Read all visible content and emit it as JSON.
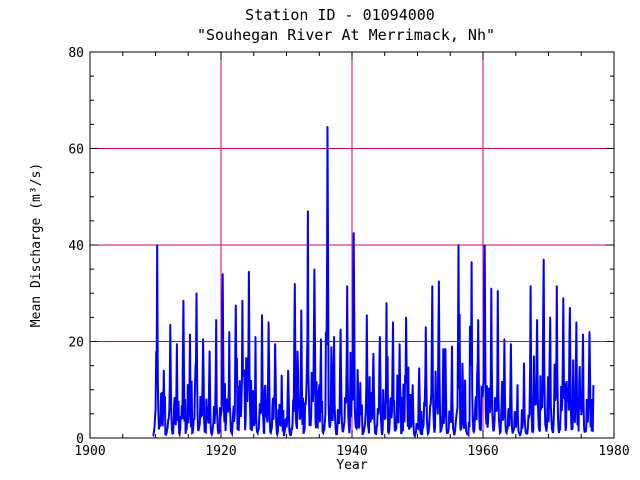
{
  "chart_data": {
    "type": "line",
    "title": "Station ID - 01094000",
    "subtitle": "\"Souhegan River At Merrimack, Nh\"",
    "xlabel": "Year",
    "ylabel": "Mean Discharge (m³/s)",
    "xlim": [
      1900,
      1980
    ],
    "ylim": [
      0,
      80
    ],
    "xticks": [
      1900,
      1920,
      1940,
      1960,
      1980
    ],
    "yticks": [
      0,
      20,
      40,
      60,
      80
    ],
    "grid": true,
    "colors": {
      "series": "#0000ff",
      "grid": "#cc0077",
      "axes": "#000000"
    },
    "series": [
      {
        "peaks": [
          [
            1910.0,
            40.0
          ],
          [
            1911.0,
            14.0
          ],
          [
            1912.0,
            23.5
          ],
          [
            1913.0,
            19.5
          ],
          [
            1914.0,
            28.5
          ],
          [
            1915.0,
            21.5
          ],
          [
            1916.0,
            30.0
          ],
          [
            1917.0,
            20.5
          ],
          [
            1918.0,
            18.0
          ],
          [
            1919.0,
            24.5
          ],
          [
            1920.0,
            34.0
          ],
          [
            1921.0,
            22.0
          ],
          [
            1922.0,
            27.5
          ],
          [
            1923.0,
            28.5
          ],
          [
            1924.0,
            34.5
          ],
          [
            1925.0,
            21.0
          ],
          [
            1926.0,
            25.5
          ],
          [
            1927.0,
            24.0
          ],
          [
            1928.0,
            19.5
          ],
          [
            1929.0,
            13.0
          ],
          [
            1930.0,
            14.0
          ],
          [
            1931.0,
            32.0
          ],
          [
            1932.0,
            26.5
          ],
          [
            1933.0,
            47.0
          ],
          [
            1934.0,
            35.0
          ],
          [
            1935.0,
            20.5
          ],
          [
            1936.0,
            64.5
          ],
          [
            1937.0,
            21.0
          ],
          [
            1938.0,
            22.5
          ],
          [
            1939.0,
            31.5
          ],
          [
            1940.0,
            42.5
          ],
          [
            1941.0,
            11.5
          ],
          [
            1942.0,
            25.5
          ],
          [
            1943.0,
            17.5
          ],
          [
            1944.0,
            21.0
          ],
          [
            1945.0,
            28.0
          ],
          [
            1946.0,
            24.0
          ],
          [
            1947.0,
            19.5
          ],
          [
            1948.0,
            25.0
          ],
          [
            1949.0,
            11.0
          ],
          [
            1950.0,
            14.5
          ],
          [
            1951.0,
            23.0
          ],
          [
            1952.0,
            31.5
          ],
          [
            1953.0,
            32.5
          ],
          [
            1954.0,
            18.5
          ],
          [
            1955.0,
            19.0
          ],
          [
            1956.0,
            40.0
          ],
          [
            1957.0,
            12.0
          ],
          [
            1958.0,
            36.5
          ],
          [
            1959.0,
            24.5
          ],
          [
            1960.0,
            40.0
          ],
          [
            1961.0,
            31.0
          ],
          [
            1962.0,
            30.5
          ],
          [
            1963.0,
            20.5
          ],
          [
            1964.0,
            19.5
          ],
          [
            1965.0,
            11.0
          ],
          [
            1966.0,
            15.5
          ],
          [
            1967.0,
            31.5
          ],
          [
            1968.0,
            24.5
          ],
          [
            1969.0,
            37.0
          ],
          [
            1970.0,
            25.0
          ],
          [
            1971.0,
            31.5
          ],
          [
            1972.0,
            29.0
          ],
          [
            1973.0,
            27.0
          ],
          [
            1974.0,
            24.0
          ],
          [
            1975.0,
            21.5
          ],
          [
            1976.0,
            22.0
          ]
        ],
        "start_year": 1909.6,
        "end_year": 1976.9
      }
    ]
  }
}
